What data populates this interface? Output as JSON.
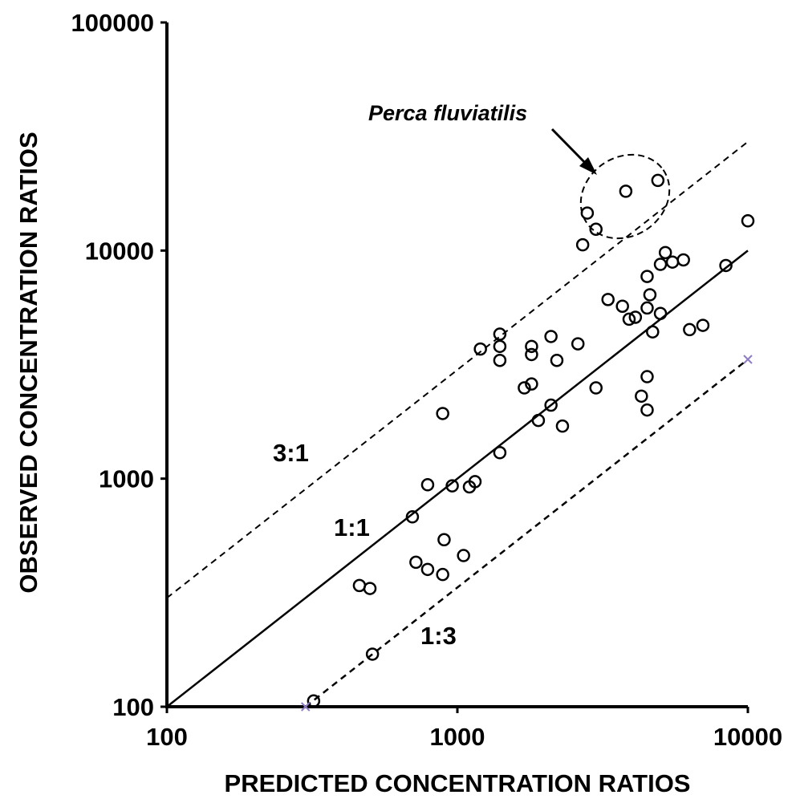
{
  "chart_data": {
    "type": "scatter",
    "title": "",
    "xlabel": "PREDICTED CONCENTRATION  RATIOS",
    "ylabel": "OBSERVED  CONCENTRATION  RATIOS",
    "x_scale": "log",
    "y_scale": "log",
    "xlim": [
      100,
      10000
    ],
    "ylim": [
      100,
      100000
    ],
    "x_ticks": [
      "100",
      "1000",
      "10000"
    ],
    "y_ticks": [
      "100",
      "1000",
      "10000",
      "100000"
    ],
    "grid": false,
    "reference_lines": [
      {
        "label": "1:1",
        "factor": 1,
        "style": "solid"
      },
      {
        "label": "3:1",
        "factor": 3,
        "style": "dashed"
      },
      {
        "label": "1:3",
        "factor": 0.3333,
        "style": "dashed"
      }
    ],
    "annotation": {
      "text": "Perca fluviatilis",
      "points": [
        [
          2800,
          14600
        ],
        [
          3000,
          12400
        ],
        [
          3800,
          18200
        ],
        [
          4900,
          20300
        ]
      ]
    },
    "series": [
      {
        "marker": "circle",
        "points": [
          [
            10000,
            13500
          ],
          [
            2700,
            10600
          ],
          [
            3000,
            12400
          ],
          [
            2800,
            14600
          ],
          [
            3800,
            18200
          ],
          [
            4900,
            20300
          ],
          [
            5200,
            9800
          ],
          [
            5500,
            8900
          ],
          [
            5000,
            8700
          ],
          [
            6000,
            9100
          ],
          [
            8400,
            8600
          ],
          [
            4500,
            7700
          ],
          [
            4600,
            6400
          ],
          [
            3300,
            6100
          ],
          [
            3700,
            5700
          ],
          [
            3900,
            5000
          ],
          [
            4100,
            5100
          ],
          [
            4500,
            5600
          ],
          [
            5000,
            5300
          ],
          [
            6300,
            4500
          ],
          [
            7000,
            4700
          ],
          [
            4700,
            4400
          ],
          [
            1400,
            4300
          ],
          [
            1400,
            3800
          ],
          [
            1400,
            3300
          ],
          [
            1200,
            3700
          ],
          [
            1800,
            3800
          ],
          [
            1800,
            3500
          ],
          [
            2100,
            4200
          ],
          [
            2600,
            3900
          ],
          [
            2200,
            3300
          ],
          [
            1700,
            2500
          ],
          [
            1800,
            2600
          ],
          [
            2100,
            2100
          ],
          [
            1900,
            1800
          ],
          [
            2300,
            1700
          ],
          [
            3000,
            2500
          ],
          [
            4300,
            2300
          ],
          [
            4500,
            2800
          ],
          [
            4500,
            2000
          ],
          [
            890,
            1930
          ],
          [
            1400,
            1300
          ],
          [
            790,
            940
          ],
          [
            960,
            930
          ],
          [
            1100,
            920
          ],
          [
            1150,
            970
          ],
          [
            700,
            680
          ],
          [
            900,
            540
          ],
          [
            720,
            430
          ],
          [
            790,
            400
          ],
          [
            890,
            380
          ],
          [
            1050,
            460
          ],
          [
            460,
            340
          ],
          [
            500,
            330
          ],
          [
            510,
            170
          ],
          [
            320,
            106
          ]
        ]
      },
      {
        "marker": "x",
        "color": "#8E7CC3",
        "points": [
          [
            300,
            100
          ],
          [
            10000,
            3333
          ]
        ]
      }
    ]
  },
  "labels": {
    "ratio_3_1": "3:1",
    "ratio_1_1": "1:1",
    "ratio_1_3": "1:3",
    "annotation": "Perca fluviatilis"
  },
  "colors": {
    "axes": "#000000",
    "markers": "#000000",
    "x_marker": "#8E7CC3"
  }
}
